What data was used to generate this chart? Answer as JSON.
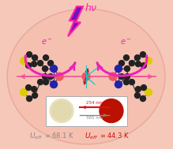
{
  "bg_color": "#F5C8BA",
  "ellipse_face": "#F5C0B0",
  "ellipse_edge": "#E8A898",
  "ueff_left_color": "#888888",
  "ueff_right_color": "#CC1111",
  "hv_color": "#FF22AA",
  "arrow_color": "#EE22BB",
  "e_color": "#EE22BB",
  "nm254_color": "#DD1111",
  "nm365_color": "#888888",
  "lightning_fill": "#7711BB",
  "lightning_edge": "#FF22AA",
  "node_color": "#222222",
  "n_color": "#2222AA",
  "s_color": "#DDCC00",
  "dy_color": "#EE5566",
  "bond_color": "#444444",
  "center_line_color": "#EE5599",
  "red_arrow_color": "#CC1111",
  "cyan_color": "#00CCCC"
}
